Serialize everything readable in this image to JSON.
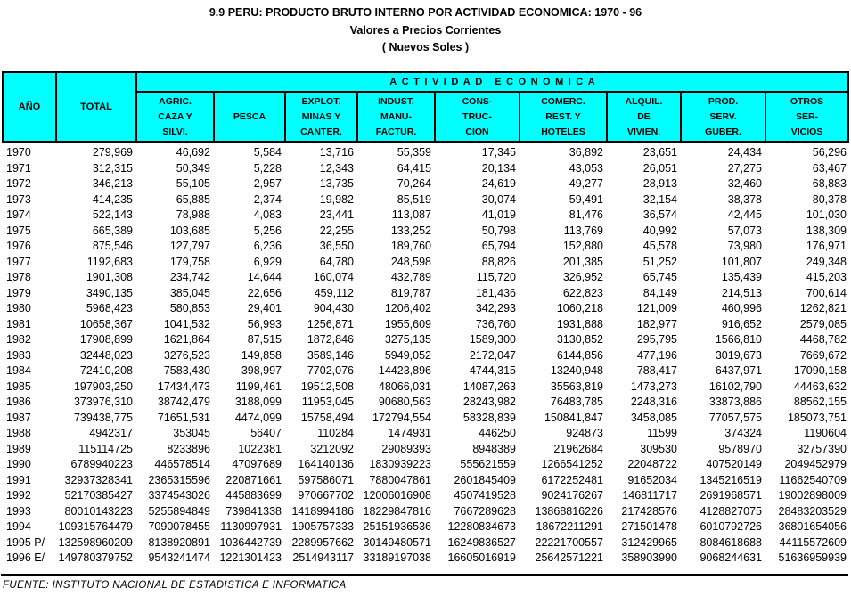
{
  "page": {
    "title": "9.9 PERU: PRODUCTO BRUTO INTERNO POR ACTIVIDAD ECONOMICA: 1970 - 96",
    "subtitle1": "Valores a Precios Corrientes",
    "subtitle2": "( Nuevos Soles )",
    "footer_source": "FUENTE: INSTITUTO NACIONAL DE ESTADISTICA E INFORMATICA"
  },
  "colors": {
    "header_bg": "#00ffff",
    "border": "#000000",
    "text": "#000000",
    "background": "#ffffff"
  },
  "table": {
    "col_ano": "AÑO",
    "col_total": "TOTAL",
    "group_header": "ACTIVIDAD  ECONOMICA",
    "activity_columns": [
      [
        "AGRIC.",
        "CAZA Y",
        "SILVI."
      ],
      [
        "",
        "PESCA",
        ""
      ],
      [
        "EXPLOT.",
        "MINAS Y",
        "CANTER."
      ],
      [
        "INDUST.",
        "MANU-",
        "FACTUR."
      ],
      [
        "CONS-",
        "TRUC-",
        "CION"
      ],
      [
        "COMERC.",
        "REST. Y",
        "HOTELES"
      ],
      [
        "ALQUIL.",
        "DE",
        "VIVIEN."
      ],
      [
        "PROD.",
        "SERV.",
        "GUBER."
      ],
      [
        "OTROS",
        "SER-",
        "VICIOS"
      ]
    ],
    "rows": [
      {
        "year": "1970",
        "values": [
          "279,969",
          "46,692",
          "5,584",
          "13,716",
          "55,359",
          "17,345",
          "36,892",
          "23,651",
          "24,434",
          "56,296"
        ]
      },
      {
        "year": "1971",
        "values": [
          "312,315",
          "50,349",
          "5,228",
          "12,343",
          "64,415",
          "20,134",
          "43,053",
          "26,051",
          "27,275",
          "63,467"
        ]
      },
      {
        "year": "1972",
        "values": [
          "346,213",
          "55,105",
          "2,957",
          "13,735",
          "70,264",
          "24,619",
          "49,277",
          "28,913",
          "32,460",
          "68,883"
        ]
      },
      {
        "year": "1973",
        "values": [
          "414,235",
          "65,885",
          "2,374",
          "19,982",
          "85,519",
          "30,074",
          "59,491",
          "32,154",
          "38,378",
          "80,378"
        ]
      },
      {
        "year": "1974",
        "values": [
          "522,143",
          "78,988",
          "4,083",
          "23,441",
          "113,087",
          "41,019",
          "81,476",
          "36,574",
          "42,445",
          "101,030"
        ]
      },
      {
        "year": "1975",
        "values": [
          "665,389",
          "103,685",
          "5,256",
          "22,255",
          "133,252",
          "50,798",
          "113,769",
          "40,992",
          "57,073",
          "138,309"
        ]
      },
      {
        "year": "1976",
        "values": [
          "875,546",
          "127,797",
          "6,236",
          "36,550",
          "189,760",
          "65,794",
          "152,880",
          "45,578",
          "73,980",
          "176,971"
        ]
      },
      {
        "year": "1977",
        "values": [
          "1192,683",
          "179,758",
          "6,929",
          "64,780",
          "248,598",
          "88,826",
          "201,385",
          "51,252",
          "101,807",
          "249,348"
        ]
      },
      {
        "year": "1978",
        "values": [
          "1901,308",
          "234,742",
          "14,644",
          "160,074",
          "432,789",
          "115,720",
          "326,952",
          "65,745",
          "135,439",
          "415,203"
        ]
      },
      {
        "year": "1979",
        "values": [
          "3490,135",
          "385,045",
          "22,656",
          "459,112",
          "819,787",
          "181,436",
          "622,823",
          "84,149",
          "214,513",
          "700,614"
        ]
      },
      {
        "year": "1980",
        "values": [
          "5968,423",
          "580,853",
          "29,401",
          "904,430",
          "1206,402",
          "342,293",
          "1060,218",
          "121,009",
          "460,996",
          "1262,821"
        ]
      },
      {
        "year": "1981",
        "values": [
          "10658,367",
          "1041,532",
          "56,993",
          "1256,871",
          "1955,609",
          "736,760",
          "1931,888",
          "182,977",
          "916,652",
          "2579,085"
        ]
      },
      {
        "year": "1982",
        "values": [
          "17908,899",
          "1621,864",
          "87,515",
          "1872,846",
          "3275,135",
          "1589,300",
          "3130,852",
          "295,795",
          "1566,810",
          "4468,782"
        ]
      },
      {
        "year": "1983",
        "values": [
          "32448,023",
          "3276,523",
          "149,858",
          "3589,146",
          "5949,052",
          "2172,047",
          "6144,856",
          "477,196",
          "3019,673",
          "7669,672"
        ]
      },
      {
        "year": "1984",
        "values": [
          "72410,208",
          "7583,430",
          "398,997",
          "7702,076",
          "14423,896",
          "4744,315",
          "13240,948",
          "788,417",
          "6437,971",
          "17090,158"
        ]
      },
      {
        "year": "1985",
        "values": [
          "197903,250",
          "17434,473",
          "1199,461",
          "19512,508",
          "48066,031",
          "14087,263",
          "35563,819",
          "1473,273",
          "16102,790",
          "44463,632"
        ]
      },
      {
        "year": "1986",
        "values": [
          "373976,310",
          "38742,479",
          "3188,099",
          "11953,045",
          "90680,563",
          "28243,982",
          "76483,785",
          "2248,316",
          "33873,886",
          "88562,155"
        ]
      },
      {
        "year": "1987",
        "values": [
          "739438,775",
          "71651,531",
          "4474,099",
          "15758,494",
          "172794,554",
          "58328,839",
          "150841,847",
          "3458,085",
          "77057,575",
          "185073,751"
        ]
      },
      {
        "year": "1988",
        "values": [
          "4942317",
          "353045",
          "56407",
          "110284",
          "1474931",
          "446250",
          "924873",
          "11599",
          "374324",
          "1190604"
        ]
      },
      {
        "year": "1989",
        "values": [
          "115114725",
          "8233896",
          "1022381",
          "3212092",
          "29089393",
          "8948389",
          "21962684",
          "309530",
          "9578970",
          "32757390"
        ]
      },
      {
        "year": "1990",
        "values": [
          "6789940223",
          "446578514",
          "47097689",
          "164140136",
          "1830939223",
          "555621559",
          "1266541252",
          "22048722",
          "407520149",
          "2049452979"
        ]
      },
      {
        "year": "1991",
        "values": [
          "32937328341",
          "2365315596",
          "220871661",
          "597586071",
          "7880047861",
          "2601845409",
          "6172252481",
          "91652034",
          "1345216519",
          "11662540709"
        ]
      },
      {
        "year": "1992",
        "values": [
          "52170385427",
          "3374543026",
          "445883699",
          "970667702",
          "12006016908",
          "4507419528",
          "9024176267",
          "146811717",
          "2691968571",
          "19002898009"
        ]
      },
      {
        "year": "1993",
        "values": [
          "80010143223",
          "5255894849",
          "739841338",
          "1418994186",
          "18229847816",
          "7667289628",
          "13868816226",
          "217428576",
          "4128827075",
          "28483203529"
        ]
      },
      {
        "year": "1994",
        "values": [
          "109315764479",
          "7090078455",
          "1130997931",
          "1905757333",
          "25151936536",
          "12280834673",
          "18672211291",
          "271501478",
          "6010792726",
          "36801654056"
        ]
      },
      {
        "year": "1995 P/",
        "values": [
          "132598960209",
          "8138920891",
          "1036442739",
          "2289957662",
          "30149480571",
          "16249836527",
          "22221700557",
          "312429965",
          "8084618688",
          "44115572609"
        ]
      },
      {
        "year": "1996 E/",
        "values": [
          "149780379752",
          "9543241474",
          "1221301423",
          "2514943117",
          "33189197038",
          "16605016919",
          "25642571221",
          "358903990",
          "9068244631",
          "51636959939"
        ]
      }
    ]
  }
}
